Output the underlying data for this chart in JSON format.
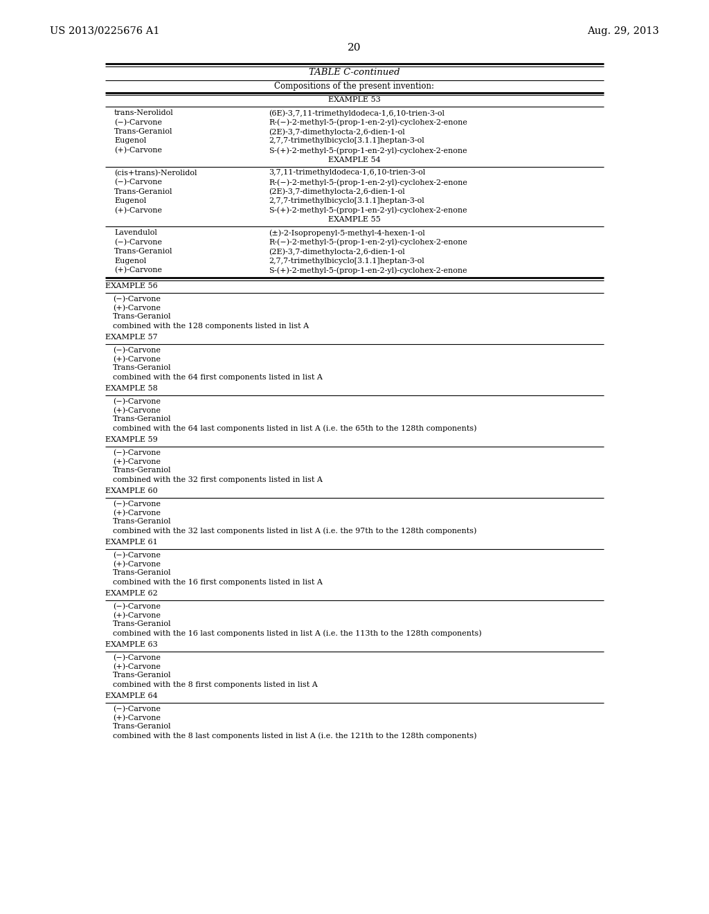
{
  "bg_color": "#ffffff",
  "header_left": "US 2013/0225676 A1",
  "header_right": "Aug. 29, 2013",
  "page_number": "20",
  "table_title": "TABLE C-continued",
  "table_subtitle": "Compositions of the present invention:",
  "ex53_rows": [
    [
      "trans-Nerolidol",
      "(6E)-3,7,11-trimethyldodeca-1,6,10-trien-3-ol"
    ],
    [
      "(−)-Carvone",
      "R-(−)-2-methyl-5-(prop-1-en-2-yl)-cyclohex-2-enone"
    ],
    [
      "Trans-Geraniol",
      "(2E)-3,7-dimethylocta-2,6-dien-1-ol"
    ],
    [
      "Eugenol",
      "2,7,7-trimethylbicyclo[3.1.1]heptan-3-ol"
    ],
    [
      "(+)-Carvone",
      "S-(+)-2-methyl-5-(prop-1-en-2-yl)-cyclohex-2-enone"
    ]
  ],
  "ex54_rows": [
    [
      "(cis+trans)-Nerolidol",
      "3,7,11-trimethyldodeca-1,6,10-trien-3-ol"
    ],
    [
      "(−)-Carvone",
      "R-(−)-2-methyl-5-(prop-1-en-2-yl)-cyclohex-2-enone"
    ],
    [
      "Trans-Geraniol",
      "(2E)-3,7-dimethylocta-2,6-dien-1-ol"
    ],
    [
      "Eugenol",
      "2,7,7-trimethylbicyclo[3.1.1]heptan-3-ol"
    ],
    [
      "(+)-Carvone",
      "S-(+)-2-methyl-5-(prop-1-en-2-yl)-cyclohex-2-enone"
    ]
  ],
  "ex55_rows": [
    [
      "Lavendulol",
      "(±)-2-Isopropenyl-5-methyl-4-hexen-1-ol"
    ],
    [
      "(−)-Carvone",
      "R-(−)-2-methyl-5-(prop-1-en-2-yl)-cyclohex-2-enone"
    ],
    [
      "Trans-Geraniol",
      "(2E)-3,7-dimethylocta-2,6-dien-1-ol"
    ],
    [
      "Eugenol",
      "2,7,7-trimethylbicyclo[3.1.1]heptan-3-ol"
    ],
    [
      "(+)-Carvone",
      "S-(+)-2-methyl-5-(prop-1-en-2-yl)-cyclohex-2-enone"
    ]
  ],
  "simple_examples": [
    {
      "label": "EXAMPLE 56",
      "lines": [
        "(−)-Carvone",
        "(+)-Carvone",
        "Trans-Geraniol",
        "combined with the 128 components listed in list A"
      ]
    },
    {
      "label": "EXAMPLE 57",
      "lines": [
        "(−)-Carvone",
        "(+)-Carvone",
        "Trans-Geraniol",
        "combined with the 64 first components listed in list A"
      ]
    },
    {
      "label": "EXAMPLE 58",
      "lines": [
        "(−)-Carvone",
        "(+)-Carvone",
        "Trans-Geraniol",
        "combined with the 64 last components listed in list A (i.e. the 65th to the 128th components)"
      ]
    },
    {
      "label": "EXAMPLE 59",
      "lines": [
        "(−)-Carvone",
        "(+)-Carvone",
        "Trans-Geraniol",
        "combined with the 32 first components listed in list A"
      ]
    },
    {
      "label": "EXAMPLE 60",
      "lines": [
        "(−)-Carvone",
        "(+)-Carvone",
        "Trans-Geraniol",
        "combined with the 32 last components listed in list A (i.e. the 97th to the 128th components)"
      ]
    },
    {
      "label": "EXAMPLE 61",
      "lines": [
        "(−)-Carvone",
        "(+)-Carvone",
        "Trans-Geraniol",
        "combined with the 16 first components listed in list A"
      ]
    },
    {
      "label": "EXAMPLE 62",
      "lines": [
        "(−)-Carvone",
        "(+)-Carvone",
        "Trans-Geraniol",
        "combined with the 16 last components listed in list A (i.e. the 113th to the 128th components)"
      ]
    },
    {
      "label": "EXAMPLE 63",
      "lines": [
        "(−)-Carvone",
        "(+)-Carvone",
        "Trans-Geraniol",
        "combined with the 8 first components listed in list A"
      ]
    },
    {
      "label": "EXAMPLE 64",
      "lines": [
        "(−)-Carvone",
        "(+)-Carvone",
        "Trans-Geraniol",
        "combined with the 8 last components listed in list A (i.e. the 121th to the 128th components)"
      ]
    }
  ]
}
